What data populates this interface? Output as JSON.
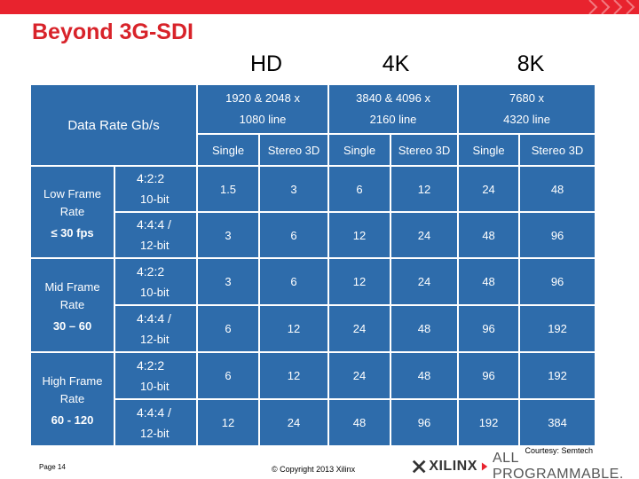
{
  "title": "Beyond 3G-SDI",
  "columns": [
    {
      "name": "HD",
      "resolution_line1": "1920 & 2048 x",
      "resolution_line2": "1080 line"
    },
    {
      "name": "4K",
      "resolution_line1": "3840 & 4096 x",
      "resolution_line2": "2160 line"
    },
    {
      "name": "8K",
      "resolution_line1": "7680 x",
      "resolution_line2": "4320 line"
    }
  ],
  "data_rate_label": "Data Rate Gb/s",
  "subheaders": [
    "Single",
    "Stereo 3D",
    "Single",
    "Stereo 3D",
    "Single",
    "Stereo 3D"
  ],
  "groups": [
    {
      "label": "Low Frame Rate",
      "range": "≤ 30 fps",
      "rows": [
        {
          "format": "4:2:2",
          "bits": "10-bit",
          "values": [
            "1.5",
            "3",
            "6",
            "12",
            "24",
            "48"
          ]
        },
        {
          "format": "4:4:4 /",
          "bits": "12-bit",
          "values": [
            "3",
            "6",
            "12",
            "24",
            "48",
            "96"
          ]
        }
      ]
    },
    {
      "label": "Mid Frame Rate",
      "range": "30 – 60",
      "rows": [
        {
          "format": "4:2:2",
          "bits": "10-bit",
          "values": [
            "3",
            "6",
            "12",
            "24",
            "48",
            "96"
          ]
        },
        {
          "format": "4:4:4 /",
          "bits": "12-bit",
          "values": [
            "6",
            "12",
            "24",
            "48",
            "96",
            "192"
          ]
        }
      ]
    },
    {
      "label": "High Frame Rate",
      "range": "60 - 120",
      "rows": [
        {
          "format": "4:2:2",
          "bits": "10-bit",
          "values": [
            "6",
            "12",
            "24",
            "48",
            "96",
            "192"
          ]
        },
        {
          "format": "4:4:4 /",
          "bits": "12-bit",
          "values": [
            "12",
            "24",
            "48",
            "96",
            "192",
            "384"
          ]
        }
      ]
    }
  ],
  "courtesy": "Courtesy: Semtech",
  "page": "Page 14",
  "copyright": "© Copyright 2013 Xilinx",
  "brand": {
    "name": "XILINX",
    "tagline": "ALL PROGRAMMABLE."
  },
  "colors": {
    "accent": "#e8232e",
    "title": "#d8232a",
    "table": "#2e6cab"
  }
}
